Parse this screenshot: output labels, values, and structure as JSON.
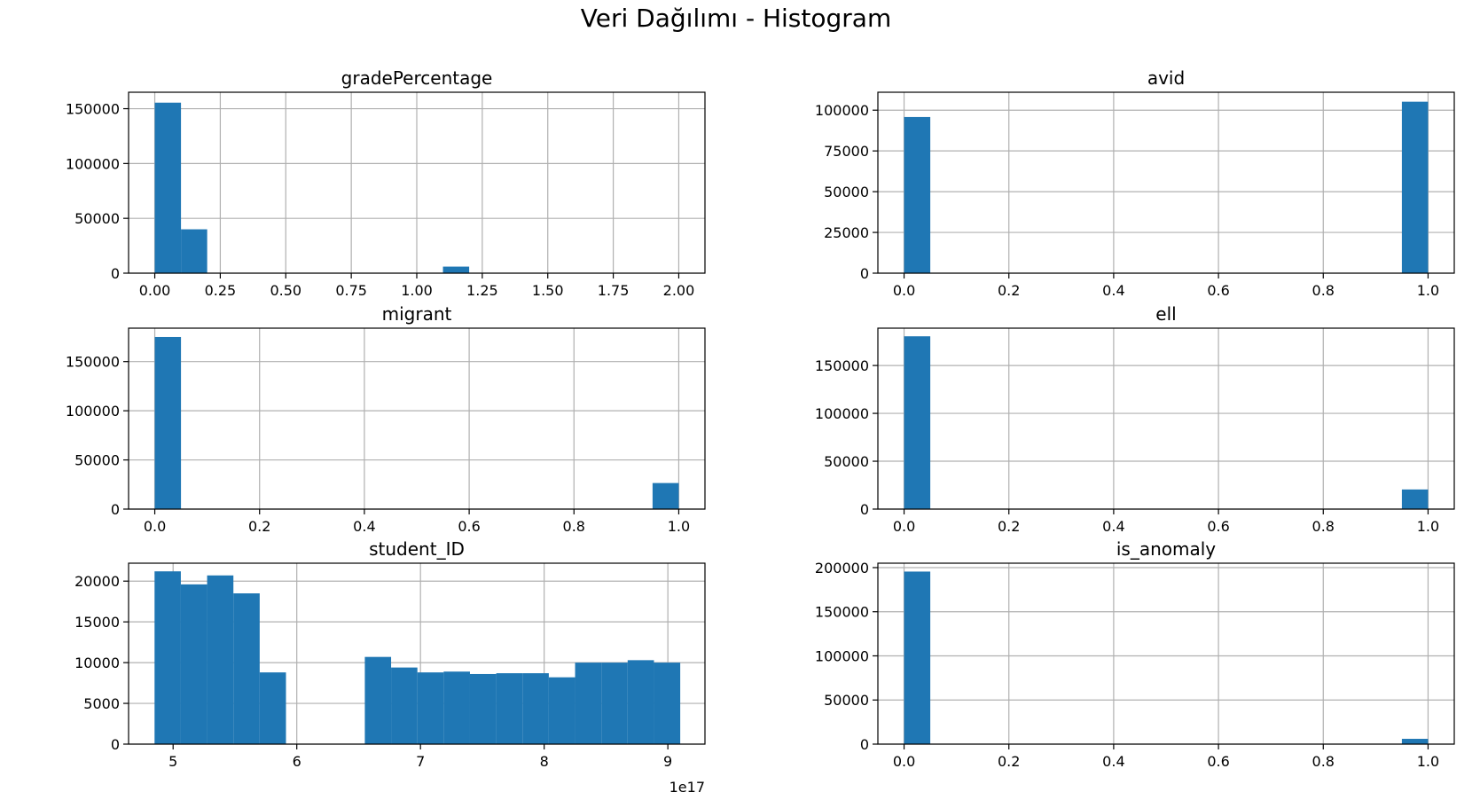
{
  "figure": {
    "title": "Veri Dağılımı - Histogram"
  },
  "style": {
    "bar_color": "#1f77b4",
    "grid_color": "#b0b0b0",
    "axis_color": "#000000"
  },
  "chart_data": [
    {
      "type": "bar",
      "title": "gradePercentage",
      "grid": true,
      "xlim": [
        -0.1,
        2.1
      ],
      "ylim": [
        0,
        165000
      ],
      "xticks": [
        0.0,
        0.25,
        0.5,
        0.75,
        1.0,
        1.25,
        1.5,
        1.75,
        2.0
      ],
      "xtick_labels": [
        "0.00",
        "0.25",
        "0.50",
        "0.75",
        "1.00",
        "1.25",
        "1.50",
        "1.75",
        "2.00"
      ],
      "yticks": [
        0,
        50000,
        100000,
        150000
      ],
      "ytick_labels": [
        "0",
        "50000",
        "100000",
        "150000"
      ],
      "offset_text": "",
      "bins": {
        "start": 0.0,
        "width": 0.1
      },
      "values": [
        155500,
        40000,
        0,
        0,
        0,
        0,
        0,
        0,
        0,
        0,
        0,
        6000,
        0,
        0,
        0,
        0,
        0,
        0,
        0,
        0
      ]
    },
    {
      "type": "bar",
      "title": "avid",
      "grid": true,
      "xlim": [
        -0.05,
        1.05
      ],
      "ylim": [
        0,
        111000
      ],
      "xticks": [
        0.0,
        0.2,
        0.4,
        0.6,
        0.8,
        1.0
      ],
      "xtick_labels": [
        "0.0",
        "0.2",
        "0.4",
        "0.6",
        "0.8",
        "1.0"
      ],
      "yticks": [
        0,
        25000,
        50000,
        75000,
        100000
      ],
      "ytick_labels": [
        "0",
        "25000",
        "50000",
        "75000",
        "100000"
      ],
      "offset_text": "",
      "bins": {
        "start": 0.0,
        "width": 0.05
      },
      "values": [
        95800,
        0,
        0,
        0,
        0,
        0,
        0,
        0,
        0,
        0,
        0,
        0,
        0,
        0,
        0,
        0,
        0,
        0,
        0,
        105200
      ]
    },
    {
      "type": "bar",
      "title": "migrant",
      "grid": true,
      "xlim": [
        -0.05,
        1.05
      ],
      "ylim": [
        0,
        184000
      ],
      "xticks": [
        0.0,
        0.2,
        0.4,
        0.6,
        0.8,
        1.0
      ],
      "xtick_labels": [
        "0.0",
        "0.2",
        "0.4",
        "0.6",
        "0.8",
        "1.0"
      ],
      "yticks": [
        0,
        50000,
        100000,
        150000
      ],
      "ytick_labels": [
        "0",
        "50000",
        "100000",
        "150000"
      ],
      "offset_text": "",
      "bins": {
        "start": 0.0,
        "width": 0.05
      },
      "values": [
        175000,
        0,
        0,
        0,
        0,
        0,
        0,
        0,
        0,
        0,
        0,
        0,
        0,
        0,
        0,
        0,
        0,
        0,
        0,
        26500
      ]
    },
    {
      "type": "bar",
      "title": "ell",
      "grid": true,
      "xlim": [
        -0.05,
        1.05
      ],
      "ylim": [
        0,
        189000
      ],
      "xticks": [
        0.0,
        0.2,
        0.4,
        0.6,
        0.8,
        1.0
      ],
      "xtick_labels": [
        "0.0",
        "0.2",
        "0.4",
        "0.6",
        "0.8",
        "1.0"
      ],
      "yticks": [
        0,
        50000,
        100000,
        150000
      ],
      "ytick_labels": [
        "0",
        "50000",
        "100000",
        "150000"
      ],
      "offset_text": "",
      "bins": {
        "start": 0.0,
        "width": 0.05
      },
      "values": [
        180500,
        0,
        0,
        0,
        0,
        0,
        0,
        0,
        0,
        0,
        0,
        0,
        0,
        0,
        0,
        0,
        0,
        0,
        0,
        20500
      ]
    },
    {
      "type": "bar",
      "title": "student_ID",
      "grid": true,
      "xlim": [
        4.64,
        9.3
      ],
      "ylim": [
        0,
        22200
      ],
      "xticks": [
        5,
        6,
        7,
        8,
        9
      ],
      "xtick_labels": [
        "5",
        "6",
        "7",
        "8",
        "9"
      ],
      "yticks": [
        0,
        5000,
        10000,
        15000,
        20000
      ],
      "ytick_labels": [
        "0",
        "5000",
        "10000",
        "15000",
        "20000"
      ],
      "offset_text": "1e17",
      "bins": {
        "start": 4.85,
        "width": 0.2125
      },
      "values": [
        21200,
        19600,
        20700,
        18500,
        8800,
        0,
        0,
        0,
        10700,
        9400,
        8800,
        8900,
        8600,
        8700,
        8700,
        8200,
        10000,
        10000,
        10300,
        10000
      ]
    },
    {
      "type": "bar",
      "title": "is_anomaly",
      "grid": true,
      "xlim": [
        -0.05,
        1.05
      ],
      "ylim": [
        0,
        205000
      ],
      "xticks": [
        0.0,
        0.2,
        0.4,
        0.6,
        0.8,
        1.0
      ],
      "xtick_labels": [
        "0.0",
        "0.2",
        "0.4",
        "0.6",
        "0.8",
        "1.0"
      ],
      "yticks": [
        0,
        50000,
        100000,
        150000,
        200000
      ],
      "ytick_labels": [
        "0",
        "50000",
        "100000",
        "150000",
        "200000"
      ],
      "offset_text": "",
      "bins": {
        "start": 0.0,
        "width": 0.05
      },
      "values": [
        195500,
        0,
        0,
        0,
        0,
        0,
        0,
        0,
        0,
        0,
        0,
        0,
        0,
        0,
        0,
        0,
        0,
        0,
        0,
        6000
      ]
    }
  ]
}
